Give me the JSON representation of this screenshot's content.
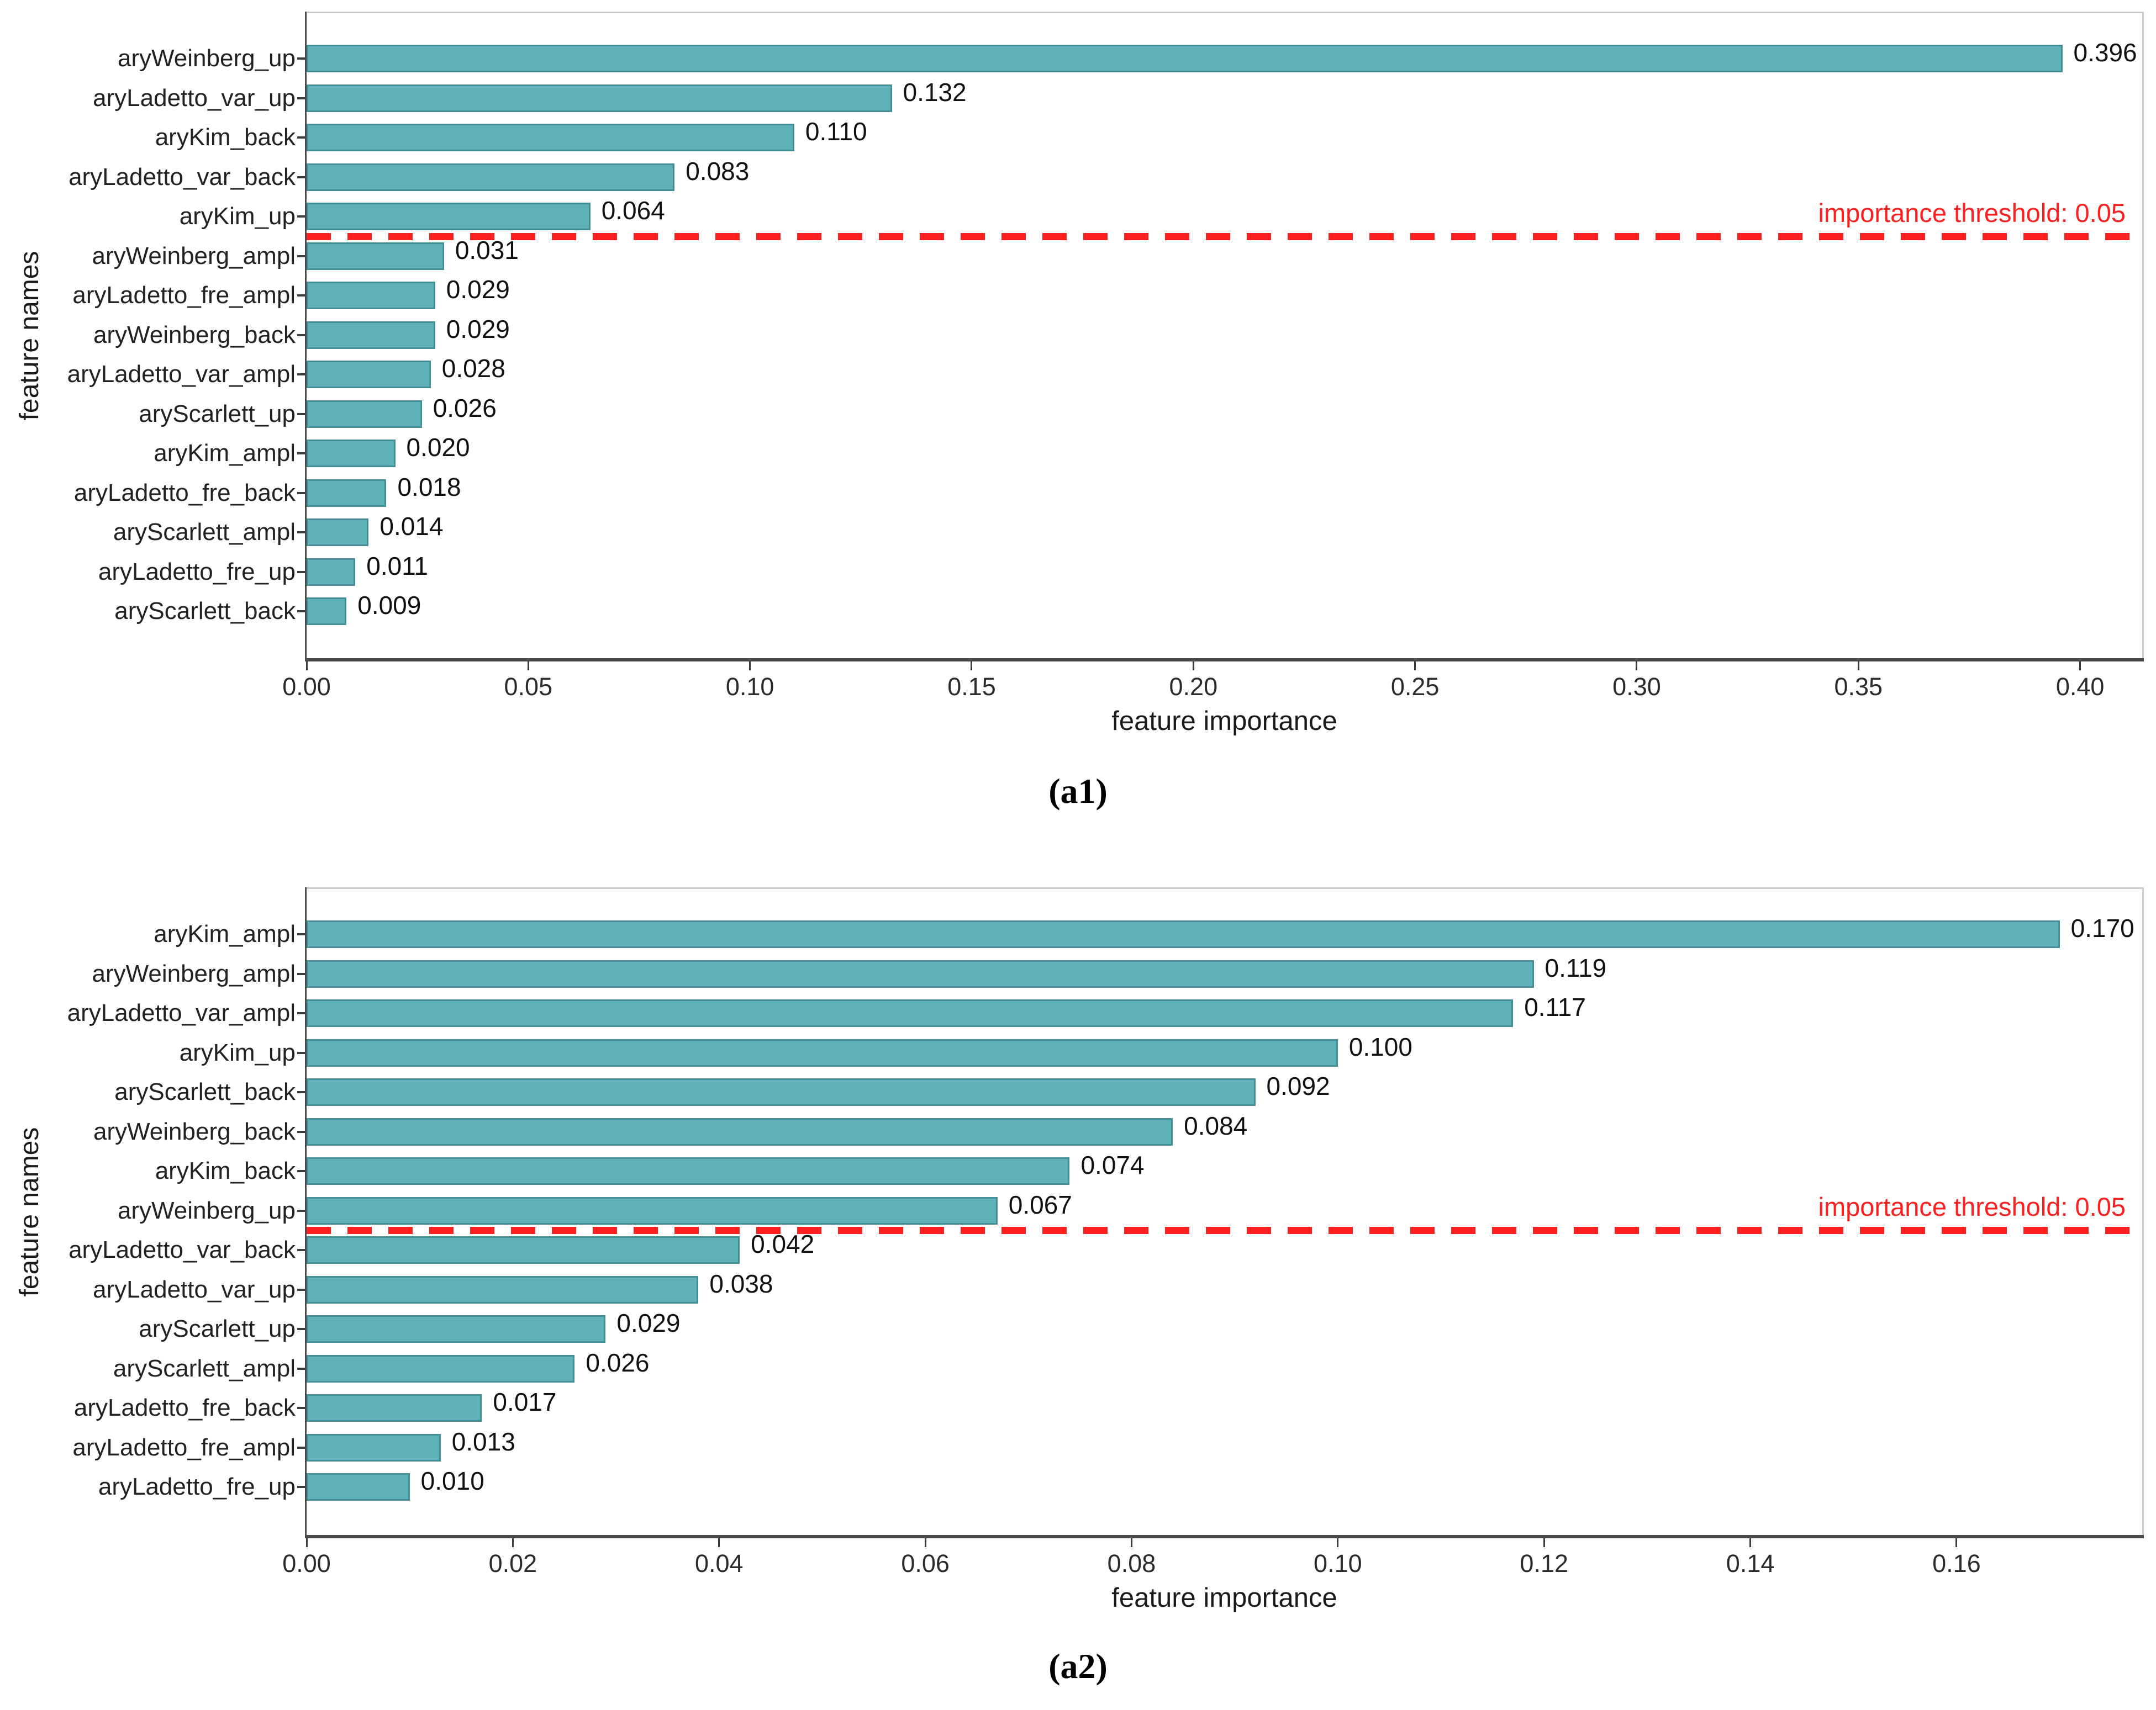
{
  "colors": {
    "bar_fill": "#60B2B9",
    "bar_edge": "#448F96",
    "threshold_red": "#FA2020",
    "spine_dark": "#4A4A4A",
    "spine_light": "#C9CDD1"
  },
  "chart_data": [
    {
      "type": "bar",
      "orientation": "horizontal",
      "panel_caption": "(a1)",
      "xlabel": "feature importance",
      "ylabel": "feature names",
      "categories": [
        "aryWeinberg_up",
        "aryLadetto_var_up",
        "aryKim_back",
        "aryLadetto_var_back",
        "aryKim_up",
        "aryWeinberg_ampl",
        "aryLadetto_fre_ampl",
        "aryWeinberg_back",
        "aryLadetto_var_ampl",
        "aryScarlett_up",
        "aryKim_ampl",
        "aryLadetto_fre_back",
        "aryScarlett_ampl",
        "aryLadetto_fre_up",
        "aryScarlett_back"
      ],
      "values": [
        0.396,
        0.132,
        0.11,
        0.083,
        0.064,
        0.031,
        0.029,
        0.029,
        0.028,
        0.026,
        0.02,
        0.018,
        0.014,
        0.011,
        0.009
      ],
      "xticks": [
        "0.00",
        "0.05",
        "0.10",
        "0.15",
        "0.20",
        "0.25",
        "0.30",
        "0.35",
        "0.40"
      ],
      "xlim": [
        0,
        0.414
      ],
      "grid": false,
      "annotation": "importance threshold: 0.05",
      "threshold_value": 0.05
    },
    {
      "type": "bar",
      "orientation": "horizontal",
      "panel_caption": "(a2)",
      "xlabel": "feature importance",
      "ylabel": "feature names",
      "categories": [
        "aryKim_ampl",
        "aryWeinberg_ampl",
        "aryLadetto_var_ampl",
        "aryKim_up",
        "aryScarlett_back",
        "aryWeinberg_back",
        "aryKim_back",
        "aryWeinberg_up",
        "aryLadetto_var_back",
        "aryLadetto_var_up",
        "aryScarlett_up",
        "aryScarlett_ampl",
        "aryLadetto_fre_back",
        "aryLadetto_fre_ampl",
        "aryLadetto_fre_up"
      ],
      "values": [
        0.17,
        0.119,
        0.117,
        0.1,
        0.092,
        0.084,
        0.074,
        0.067,
        0.042,
        0.038,
        0.029,
        0.026,
        0.017,
        0.013,
        0.01
      ],
      "xticks": [
        "0.00",
        "0.02",
        "0.04",
        "0.06",
        "0.08",
        "0.10",
        "0.12",
        "0.14",
        "0.16"
      ],
      "xlim": [
        0,
        0.178
      ],
      "grid": false,
      "annotation": "importance threshold: 0.05",
      "threshold_value": 0.05
    }
  ],
  "figure": {
    "charts": [
      {
        "id": "a1",
        "caption": "(a1)",
        "xlabel": "feature importance",
        "ylabel": "feature names",
        "threshold_label": "importance threshold: 0.05",
        "threshold_after_index": 4,
        "xmax": 0.414,
        "xticks": [
          "0.00",
          "0.05",
          "0.10",
          "0.15",
          "0.20",
          "0.25",
          "0.30",
          "0.35",
          "0.40"
        ],
        "bars": [
          {
            "label": "aryWeinberg_up",
            "value": 0.396,
            "text": "0.396"
          },
          {
            "label": "aryLadetto_var_up",
            "value": 0.132,
            "text": "0.132"
          },
          {
            "label": "aryKim_back",
            "value": 0.11,
            "text": "0.110"
          },
          {
            "label": "aryLadetto_var_back",
            "value": 0.083,
            "text": "0.083"
          },
          {
            "label": "aryKim_up",
            "value": 0.064,
            "text": "0.064"
          },
          {
            "label": "aryWeinberg_ampl",
            "value": 0.031,
            "text": "0.031"
          },
          {
            "label": "aryLadetto_fre_ampl",
            "value": 0.029,
            "text": "0.029"
          },
          {
            "label": "aryWeinberg_back",
            "value": 0.029,
            "text": "0.029"
          },
          {
            "label": "aryLadetto_var_ampl",
            "value": 0.028,
            "text": "0.028"
          },
          {
            "label": "aryScarlett_up",
            "value": 0.026,
            "text": "0.026"
          },
          {
            "label": "aryKim_ampl",
            "value": 0.02,
            "text": "0.020"
          },
          {
            "label": "aryLadetto_fre_back",
            "value": 0.018,
            "text": "0.018"
          },
          {
            "label": "aryScarlett_ampl",
            "value": 0.014,
            "text": "0.014"
          },
          {
            "label": "aryLadetto_fre_up",
            "value": 0.011,
            "text": "0.011"
          },
          {
            "label": "aryScarlett_back",
            "value": 0.009,
            "text": "0.009"
          }
        ]
      },
      {
        "id": "a2",
        "caption": "(a2)",
        "xlabel": "feature importance",
        "ylabel": "feature names",
        "threshold_label": "importance threshold: 0.05",
        "threshold_after_index": 7,
        "xmax": 0.178,
        "xticks": [
          "0.00",
          "0.02",
          "0.04",
          "0.06",
          "0.08",
          "0.10",
          "0.12",
          "0.14",
          "0.16"
        ],
        "bars": [
          {
            "label": "aryKim_ampl",
            "value": 0.17,
            "text": "0.170"
          },
          {
            "label": "aryWeinberg_ampl",
            "value": 0.119,
            "text": "0.119"
          },
          {
            "label": "aryLadetto_var_ampl",
            "value": 0.117,
            "text": "0.117"
          },
          {
            "label": "aryKim_up",
            "value": 0.1,
            "text": "0.100"
          },
          {
            "label": "aryScarlett_back",
            "value": 0.092,
            "text": "0.092"
          },
          {
            "label": "aryWeinberg_back",
            "value": 0.084,
            "text": "0.084"
          },
          {
            "label": "aryKim_back",
            "value": 0.074,
            "text": "0.074"
          },
          {
            "label": "aryWeinberg_up",
            "value": 0.067,
            "text": "0.067"
          },
          {
            "label": "aryLadetto_var_back",
            "value": 0.042,
            "text": "0.042"
          },
          {
            "label": "aryLadetto_var_up",
            "value": 0.038,
            "text": "0.038"
          },
          {
            "label": "aryScarlett_up",
            "value": 0.029,
            "text": "0.029"
          },
          {
            "label": "aryScarlett_ampl",
            "value": 0.026,
            "text": "0.026"
          },
          {
            "label": "aryLadetto_fre_back",
            "value": 0.017,
            "text": "0.017"
          },
          {
            "label": "aryLadetto_fre_ampl",
            "value": 0.013,
            "text": "0.013"
          },
          {
            "label": "aryLadetto_fre_up",
            "value": 0.01,
            "text": "0.010"
          }
        ]
      }
    ]
  }
}
